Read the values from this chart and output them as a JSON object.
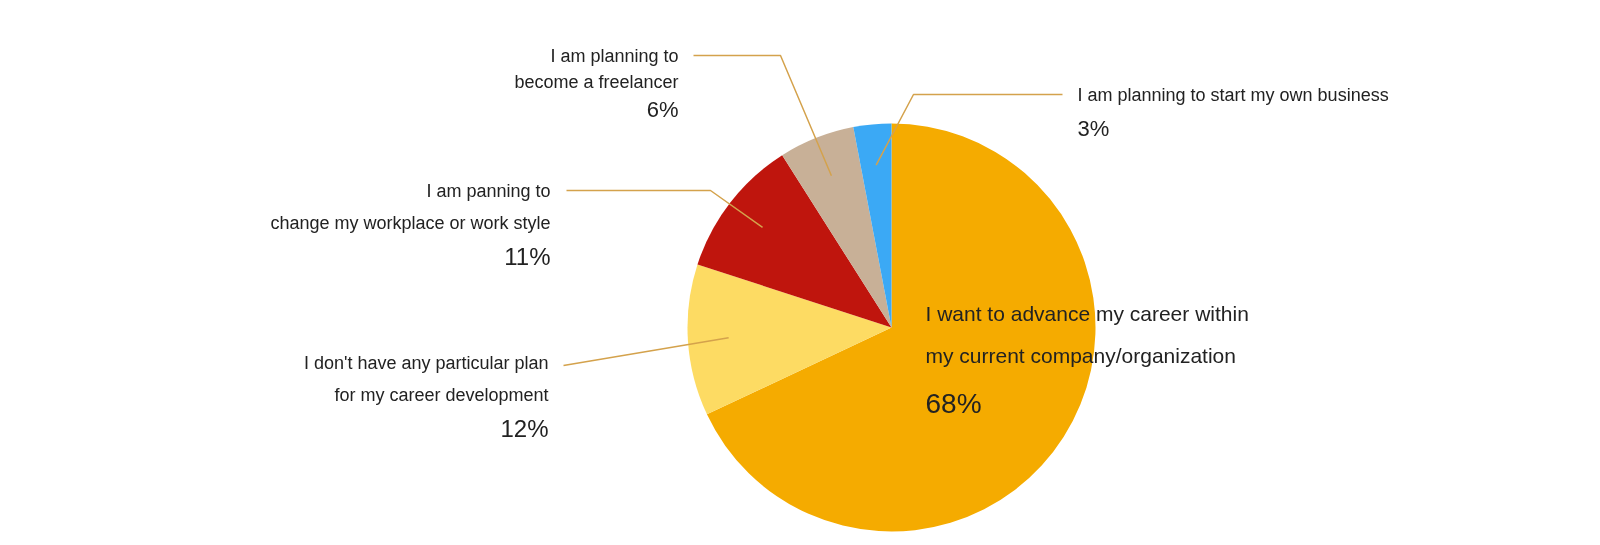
{
  "chart_data": {
    "type": "pie",
    "categories": [
      "I want to advance my career within\nmy current company/organization",
      "I don't have any particular plan\nfor my career development",
      "I am panning to\nchange my workplace or work style",
      "I am planning to\nbecome a freelancer",
      "I am planning to start my own business"
    ],
    "values": [
      68,
      12,
      11,
      6,
      3
    ],
    "colors": [
      "#f5ab00",
      "#fddb63",
      "#bf150d",
      "#c8b097",
      "#3ba9f5"
    ],
    "value_labels": [
      "68%",
      "12%",
      "11%",
      "6%",
      "3%"
    ]
  }
}
